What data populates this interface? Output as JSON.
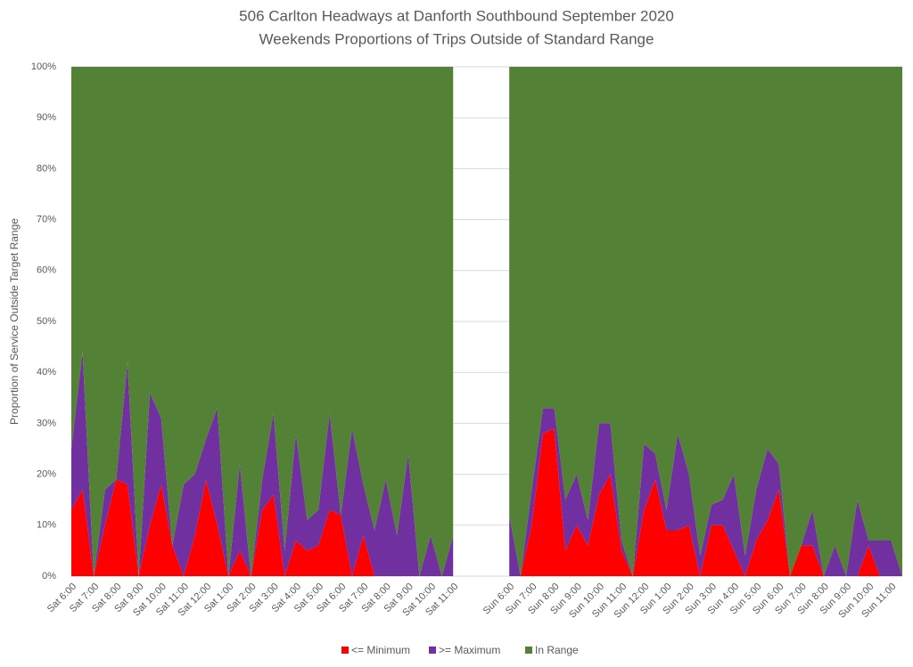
{
  "chart_data": {
    "type": "stacked_area",
    "title": "506 Carlton Headways at Danforth Southbound September 2020",
    "subtitle": "Weekends Proportions of Trips Outside of Standard Range",
    "y_label": "Proportion of Service Outside Target Range",
    "categories": [
      "Sat 6:00",
      null,
      "Sat 7:00",
      null,
      "Sat 8:00",
      null,
      "Sat 9:00",
      null,
      "Sat 10:00",
      null,
      "Sat 11:00",
      null,
      "Sat 12:00",
      null,
      "Sat 1:00",
      null,
      "Sat 2:00",
      null,
      "Sat 3:00",
      null,
      "Sat 4:00",
      null,
      "Sat 5:00",
      null,
      "Sat 6:00",
      null,
      "Sat 7:00",
      null,
      "Sat 8:00",
      null,
      "Sat 9:00",
      null,
      "Sat 10:00",
      null,
      "Sat 11:00",
      null,
      null,
      null,
      null,
      "Sun 6:00",
      null,
      "Sun 7:00",
      null,
      "Sun 8:00",
      null,
      "Sun 9:00",
      null,
      "Sun 10:00",
      null,
      "Sun 11:00",
      null,
      "Sun 12:00",
      null,
      "Sun 1:00",
      null,
      "Sun 2:00",
      null,
      "Sun 3:00",
      null,
      "Sun 4:00",
      null,
      "Sun 5:00",
      null,
      "Sun 6:00",
      null,
      "Sun 7:00",
      null,
      "Sun 8:00",
      null,
      "Sun 9:00",
      null,
      "Sun 10:00",
      null,
      "Sun 11:00",
      null
    ],
    "series": [
      {
        "name": "<= Minimum",
        "color": "#ff0000",
        "values": [
          13,
          17,
          0,
          10,
          19,
          18,
          0,
          10,
          18,
          6,
          0,
          8,
          19,
          10,
          0,
          5,
          0,
          13,
          16,
          0,
          7,
          5,
          6,
          13,
          12,
          0,
          8,
          0,
          0,
          0,
          0,
          0,
          0,
          0,
          0,
          null,
          null,
          null,
          null,
          0,
          0,
          10,
          28,
          29,
          5,
          10,
          6,
          16,
          20,
          5,
          0,
          13,
          19,
          9,
          9,
          10,
          0,
          10,
          10,
          5,
          0,
          7,
          11,
          17,
          0,
          6,
          6,
          0,
          0,
          0,
          0,
          6,
          0,
          0,
          0
        ]
      },
      {
        "name": ">= Maximum",
        "color": "#7030a0",
        "values": [
          12,
          27,
          0,
          7,
          0,
          24,
          0,
          26,
          13,
          0,
          18,
          12,
          8,
          23,
          0,
          17,
          0,
          6,
          16,
          5,
          21,
          6,
          7,
          19,
          0,
          29,
          10,
          9,
          19,
          8,
          24,
          0,
          8,
          0,
          8,
          null,
          null,
          null,
          null,
          12,
          0,
          7,
          5,
          4,
          10,
          10,
          5,
          14,
          10,
          2,
          0,
          13,
          5,
          4,
          19,
          10,
          4,
          4,
          5,
          15,
          4,
          10,
          14,
          5,
          0,
          0,
          7,
          0,
          6,
          0,
          15,
          1,
          7,
          7,
          0
        ]
      },
      {
        "name": "In Range",
        "color": "#538135",
        "values": [
          75,
          56,
          100,
          83,
          81,
          58,
          100,
          64,
          69,
          94,
          82,
          80,
          73,
          67,
          100,
          78,
          100,
          81,
          68,
          95,
          72,
          89,
          87,
          68,
          88,
          71,
          82,
          91,
          81,
          92,
          76,
          100,
          92,
          100,
          92,
          null,
          null,
          null,
          null,
          88,
          100,
          83,
          67,
          67,
          85,
          80,
          89,
          70,
          70,
          93,
          100,
          74,
          76,
          87,
          72,
          80,
          96,
          86,
          85,
          80,
          96,
          83,
          75,
          78,
          100,
          94,
          87,
          100,
          94,
          100,
          85,
          93,
          93,
          93,
          100
        ]
      }
    ],
    "ylim": [
      0,
      100
    ],
    "yticks": [
      {
        "value": 0,
        "label": "0%"
      },
      {
        "value": 10,
        "label": "10%"
      },
      {
        "value": 20,
        "label": "20%"
      },
      {
        "value": 30,
        "label": "30%"
      },
      {
        "value": 40,
        "label": "40%"
      },
      {
        "value": 50,
        "label": "50%"
      },
      {
        "value": 60,
        "label": "60%"
      },
      {
        "value": 70,
        "label": "70%"
      },
      {
        "value": 80,
        "label": "80%"
      },
      {
        "value": 90,
        "label": "90%"
      },
      {
        "value": 100,
        "label": "100%"
      }
    ],
    "grid": true,
    "legend": "bottom"
  }
}
